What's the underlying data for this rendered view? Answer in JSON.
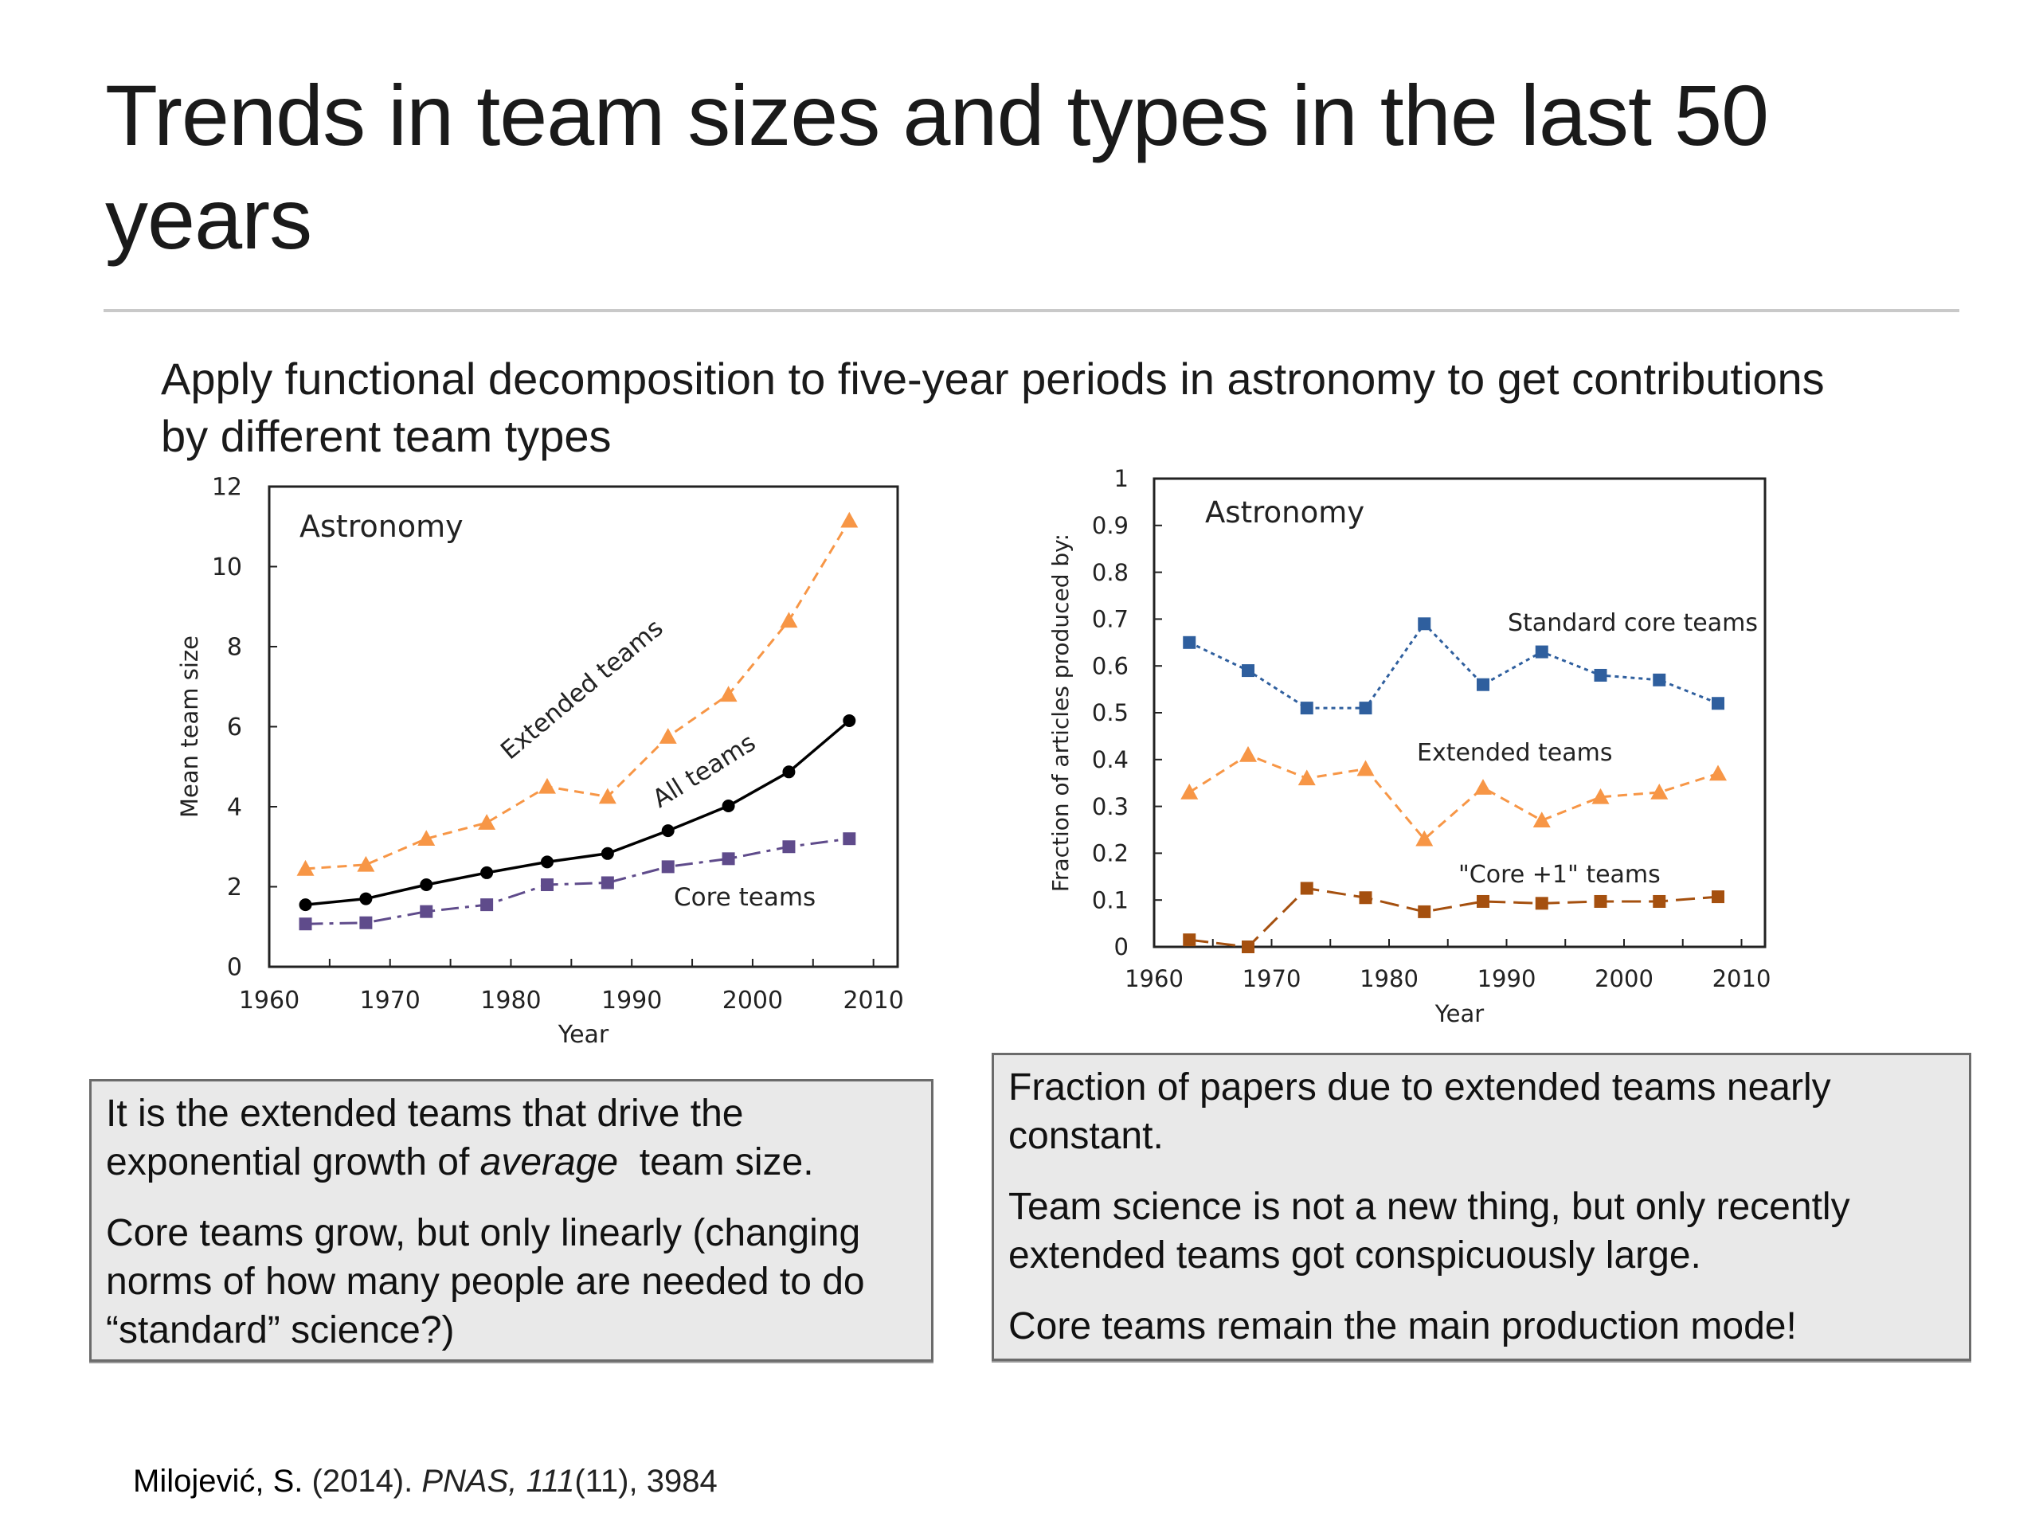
{
  "slide": {
    "title": "Trends in team sizes and types in the last 50 years",
    "subtitle": "Apply functional decomposition to five-year periods in astronomy to get contributions by different team types",
    "note_left": {
      "p1_before": "It is the extended teams that drive the exponential growth of ",
      "p1_italic": "average",
      "p1_after": "  team size.",
      "p2": "Core teams grow, but only linearly (changing norms of how many people are needed to do “standard” science?)"
    },
    "note_right": {
      "p1": "Fraction of papers due to extended teams nearly constant.",
      "p2": "Team science is not a new thing, but only recently extended teams got conspicuously large.",
      "p3": "Core teams remain the main production mode!"
    },
    "citation": {
      "author": "Milojević, S.",
      "year": " (2014). ",
      "journal": "PNAS, 111",
      "rest": "(11), 3984"
    }
  },
  "chart_data": [
    {
      "type": "line",
      "title": "Astronomy",
      "xlabel": "Year",
      "ylabel": "Mean team size",
      "xlim": [
        1960,
        2012
      ],
      "ylim": [
        0,
        12
      ],
      "xticks": [
        1960,
        1970,
        1980,
        1990,
        2000,
        2010
      ],
      "yticks": [
        0,
        2,
        4,
        6,
        8,
        10,
        12
      ],
      "grid": false,
      "x": [
        1963,
        1968,
        1973,
        1978,
        1983,
        1988,
        1993,
        1998,
        2003,
        2008
      ],
      "series": [
        {
          "name": "Extended teams",
          "color": "#F79646",
          "marker": "triangle",
          "dash": "dashed",
          "values": [
            2.45,
            2.55,
            3.2,
            3.6,
            4.5,
            4.25,
            5.75,
            6.8,
            8.65,
            11.15
          ],
          "label_angle": -40
        },
        {
          "name": "All teams",
          "color": "#000000",
          "marker": "circle",
          "dash": "solid",
          "values": [
            1.55,
            1.7,
            2.05,
            2.35,
            2.62,
            2.83,
            3.4,
            4.02,
            4.87,
            6.15
          ],
          "label_angle": -32
        },
        {
          "name": "Core teams",
          "color": "#5F4B8B",
          "marker": "square",
          "dash": "dashdot",
          "values": [
            1.07,
            1.1,
            1.38,
            1.55,
            2.05,
            2.1,
            2.5,
            2.7,
            3.0,
            3.2
          ],
          "label_angle": 0
        }
      ]
    },
    {
      "type": "line",
      "title": "Astronomy",
      "xlabel": "Year",
      "ylabel": "Fraction of articles produced by:",
      "xlim": [
        1960,
        2012
      ],
      "ylim": [
        0,
        1
      ],
      "xticks": [
        1960,
        1970,
        1980,
        1990,
        2000,
        2010
      ],
      "yticks": [
        0,
        0.1,
        0.2,
        0.3,
        0.4,
        0.5,
        0.6,
        0.7,
        0.8,
        0.9,
        1
      ],
      "grid": false,
      "x": [
        1963,
        1968,
        1973,
        1978,
        1983,
        1988,
        1993,
        1998,
        2003,
        2008
      ],
      "series": [
        {
          "name": "Standard core teams",
          "color": "#2F5F9E",
          "marker": "square",
          "dash": "dotted",
          "values": [
            0.65,
            0.59,
            0.51,
            0.51,
            0.69,
            0.56,
            0.63,
            0.58,
            0.57,
            0.52
          ]
        },
        {
          "name": "Extended  teams",
          "color": "#F79646",
          "marker": "triangle",
          "dash": "dashed",
          "values": [
            0.33,
            0.41,
            0.36,
            0.38,
            0.23,
            0.34,
            0.27,
            0.32,
            0.33,
            0.37
          ]
        },
        {
          "name": "\"Core +1\" teams",
          "color": "#A5500F",
          "marker": "square",
          "dash": "longdash",
          "values": [
            0.015,
            0.0,
            0.125,
            0.105,
            0.075,
            0.097,
            0.093,
            0.097,
            0.097,
            0.107
          ]
        }
      ]
    }
  ]
}
